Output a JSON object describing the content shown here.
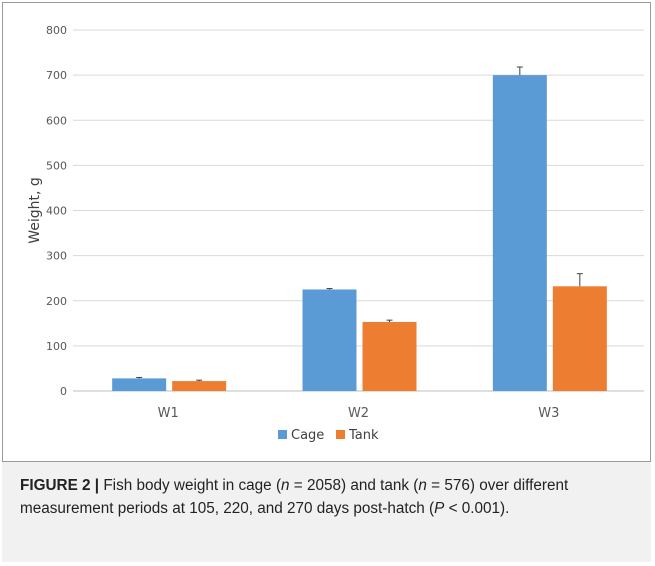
{
  "colors": {
    "cage": "#5b9bd5",
    "tank": "#ed7d31",
    "grid": "#d9d9d9",
    "caption_bg": "#f1f1f2"
  },
  "chart_data": {
    "type": "bar",
    "categories": [
      "W1",
      "W2",
      "W3"
    ],
    "series": [
      {
        "name": "Cage",
        "values": [
          28,
          225,
          700
        ],
        "error": [
          2,
          2,
          18
        ]
      },
      {
        "name": "Tank",
        "values": [
          22,
          153,
          232
        ],
        "error": [
          2,
          4,
          28
        ]
      }
    ],
    "xlabel": "",
    "ylabel": "Weight, g",
    "ylim": [
      0,
      800
    ],
    "yticks": [
      0,
      100,
      200,
      300,
      400,
      500,
      600,
      700,
      800
    ],
    "grid": true,
    "legend_position": "bottom"
  },
  "caption": {
    "label": "FIGURE 2 |",
    "text_before_n1": " Fish body weight in cage (",
    "n_symbol": "n",
    "eq1": " = 2058) and tank (",
    "eq2": " = 576) over different measurement periods at 105, 220, and 270 days post-hatch (",
    "p_symbol": "P",
    "p_rest": " < 0.001)."
  }
}
